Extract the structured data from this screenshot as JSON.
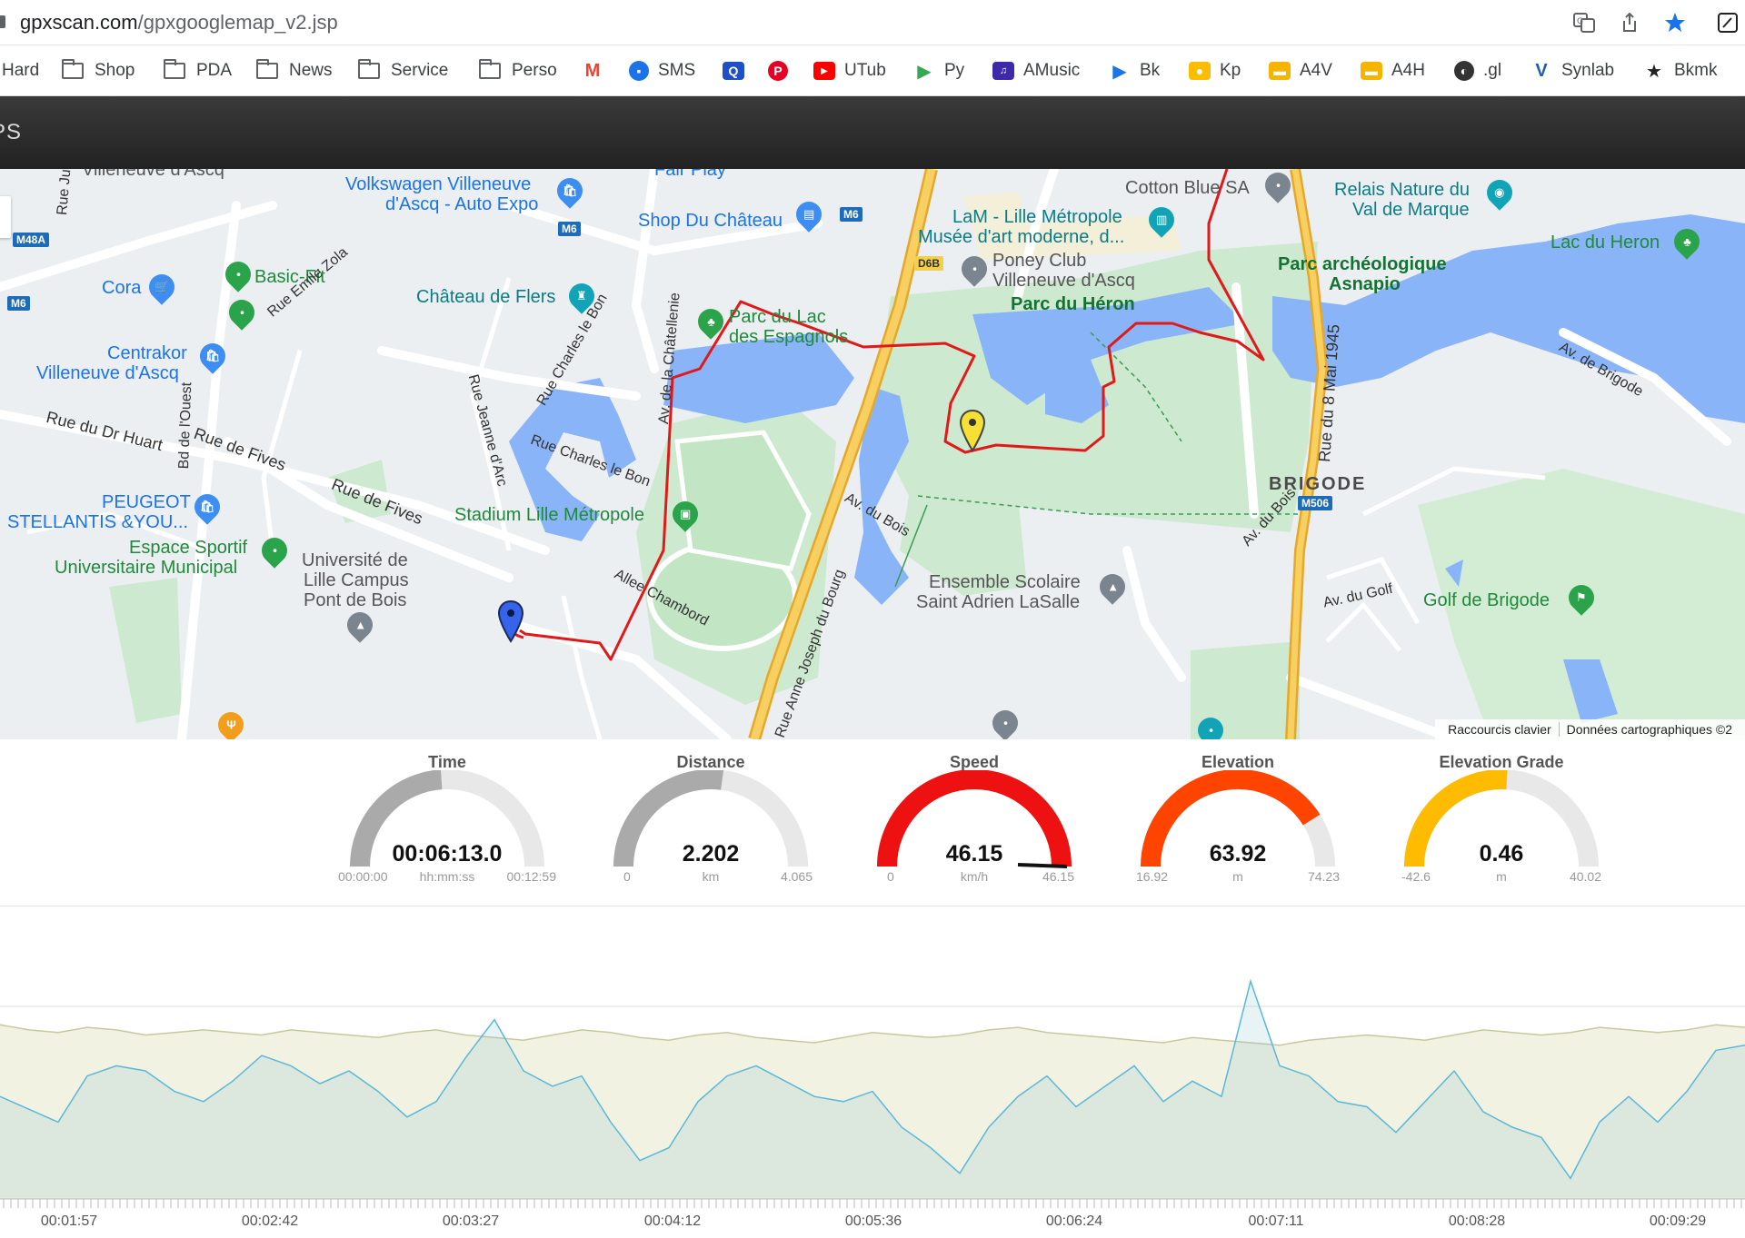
{
  "browser": {
    "url_host": "gpxscan.com",
    "url_path": "/gpxgooglemap_v2.jsp"
  },
  "bookmarks": [
    {
      "label": "Hard",
      "icon": "folder-icon"
    },
    {
      "label": "Shop",
      "icon": "folder-icon"
    },
    {
      "label": "PDA",
      "icon": "folder-icon"
    },
    {
      "label": "News",
      "icon": "folder-icon"
    },
    {
      "label": "Service",
      "icon": "folder-icon"
    },
    {
      "label": "Perso",
      "icon": "folder-icon"
    },
    {
      "label": "",
      "icon": "gmail-icon"
    },
    {
      "label": "SMS",
      "icon": "messages-icon"
    },
    {
      "label": "",
      "icon": "q-icon"
    },
    {
      "label": "",
      "icon": "pinterest-icon"
    },
    {
      "label": "UTub",
      "icon": "youtube-icon"
    },
    {
      "label": "Py",
      "icon": "play-icon"
    },
    {
      "label": "AMusic",
      "icon": "music-icon"
    },
    {
      "label": "Bk",
      "icon": "play-books-icon"
    },
    {
      "label": "Kp",
      "icon": "keep-icon"
    },
    {
      "label": "A4V",
      "icon": "slides-icon"
    },
    {
      "label": "A4H",
      "icon": "slides-icon"
    },
    {
      "label": ".gl",
      "icon": "globe-icon"
    },
    {
      "label": "Synlab",
      "icon": "synlab-icon"
    },
    {
      "label": "Bkmk",
      "icon": "star-icon"
    }
  ],
  "app": {
    "title": "PS"
  },
  "map": {
    "labels": {
      "volkswagen": "Volkswagen Villeneuve",
      "volkswagen2": "d'Ascq - Auto Expo",
      "fairplay": "Fair Play",
      "shop_chateau": "Shop Du Château",
      "cotton": "Cotton Blue SA",
      "relais1": "Relais Nature du",
      "relais2": "Val de Marque",
      "lam1": "LaM - Lille Métropole",
      "lam2": "Musée d'art moderne, d...",
      "lac_heron": "Lac du Heron",
      "poney1": "Poney Club",
      "poney2": "Villeneuve d'Ascq",
      "parc_arch1": "Parc archéologique",
      "parc_arch2": "Asnapio",
      "basic_fit": "Basic-Fit",
      "cora": "Cora",
      "chateau_flers": "Château de Flers",
      "parc_heron": "Parc du Héron",
      "parc_lac1": "Parc du Lac",
      "parc_lac2": "des Espagnols",
      "centrakor1": "Centrakor",
      "centrakor2": "Villeneuve d'Ascq",
      "rue_huart": "Rue du Dr Huart",
      "rue_fives1": "Rue de Fives",
      "rue_fives2": "Rue de Fives",
      "bd_ouest": "Bd de l'Ouest",
      "peugeot1": "PEUGEOT",
      "peugeot2": "STELLANTIS &YOU...",
      "stadium": "Stadium Lille Métropole",
      "espace1": "Espace Sportif",
      "espace2": "Universitaire Municipal",
      "univ1": "Université de",
      "univ2": "Lille Campus",
      "univ3": "Pont de Bois",
      "brigode": "BRIGODE",
      "ensemble1": "Ensemble Scolaire",
      "ensemble2": "Saint Adrien LaSalle",
      "golf": "Golf de Brigode",
      "allee_chambord": "Allee Chambord",
      "av_bois1": "Av. du Bois",
      "av_bois2": "Av. du Bois",
      "av_golf": "Av. du Golf",
      "av_brigode": "Av. de Brigode",
      "rue_8mai": "Rue du 8 Mai 1945",
      "rue_jeanne": "Rue Jeanne d'Arc",
      "rue_charles1": "Rue Charles le Bon",
      "rue_charles2": "Rue Charles le Bon",
      "rue_emile": "Rue Emile Zola",
      "av_chatellenie": "Av. de la Châtellenie",
      "rue_anne": "Rue Anne Joseph du Bourg",
      "rue_jules": "Rue Jules",
      "ascq_top": "Villeneuve d'Ascq",
      "m48a": "M48A",
      "m6_a": "M6",
      "m6_b": "M6",
      "m6_c": "M6",
      "d6b": "D6B",
      "m506": "M506"
    },
    "footer": {
      "shortcuts": "Raccourcis clavier",
      "data": "Données cartographiques ©2"
    },
    "colors": {
      "track": "#e0191b",
      "water": "#8ab4f8",
      "park": "#c7e7c9",
      "highway": "#f6c350"
    }
  },
  "gauges": [
    {
      "title": "Time",
      "value": "00:06:13.0",
      "min": "00:00:00",
      "unit": "hh:mm:ss",
      "max": "00:12:59",
      "fraction": 0.479,
      "color": "#aaaaaa"
    },
    {
      "title": "Distance",
      "value": "2.202",
      "min": "0",
      "unit": "km",
      "max": "4.065",
      "fraction": 0.542,
      "color": "#aaaaaa"
    },
    {
      "title": "Speed",
      "value": "46.15",
      "min": "0",
      "unit": "km/h",
      "max": "46.15",
      "fraction": 1.0,
      "color": "#ee1111"
    },
    {
      "title": "Elevation",
      "value": "63.92",
      "min": "16.92",
      "unit": "m",
      "max": "74.23",
      "fraction": 0.82,
      "color": "#ff4400"
    },
    {
      "title": "Elevation Grade",
      "value": "0.46",
      "min": "-42.6",
      "unit": "m",
      "max": "40.02",
      "fraction": 0.52,
      "color": "#ffbb00"
    }
  ],
  "chart_data": {
    "type": "area",
    "x_tick_labels": [
      "00:01:57",
      "00:02:42",
      "00:03:27",
      "00:04:12",
      "00:05:36",
      "00:06:24",
      "00:07:11",
      "00:08:28",
      "00:09:29"
    ],
    "series": [
      {
        "values": [
          68,
          66,
          65,
          67,
          66,
          64,
          65,
          66,
          65,
          64,
          66,
          65,
          64,
          63,
          65,
          66,
          64,
          63,
          62,
          64,
          66,
          65,
          63,
          62,
          64,
          65,
          63,
          62,
          61,
          63,
          65,
          64,
          63,
          64,
          66,
          67,
          65,
          64,
          63,
          62,
          61,
          63,
          62,
          61,
          60,
          62,
          63,
          64,
          63,
          62,
          64,
          66,
          65,
          64,
          65,
          67,
          66,
          65,
          66,
          68,
          67
        ],
        "color": "#e6e6c2"
      },
      {
        "values": [
          40,
          35,
          30,
          48,
          52,
          50,
          42,
          38,
          46,
          56,
          52,
          45,
          50,
          42,
          32,
          38,
          55,
          70,
          50,
          44,
          48,
          30,
          15,
          20,
          38,
          48,
          52,
          46,
          40,
          38,
          42,
          28,
          20,
          10,
          28,
          40,
          48,
          36,
          44,
          52,
          38,
          46,
          40,
          85,
          52,
          48,
          38,
          36,
          26,
          38,
          50,
          34,
          28,
          24,
          8,
          30,
          40,
          30,
          42,
          58,
          60
        ],
        "color": "#5bb8d8"
      }
    ]
  }
}
